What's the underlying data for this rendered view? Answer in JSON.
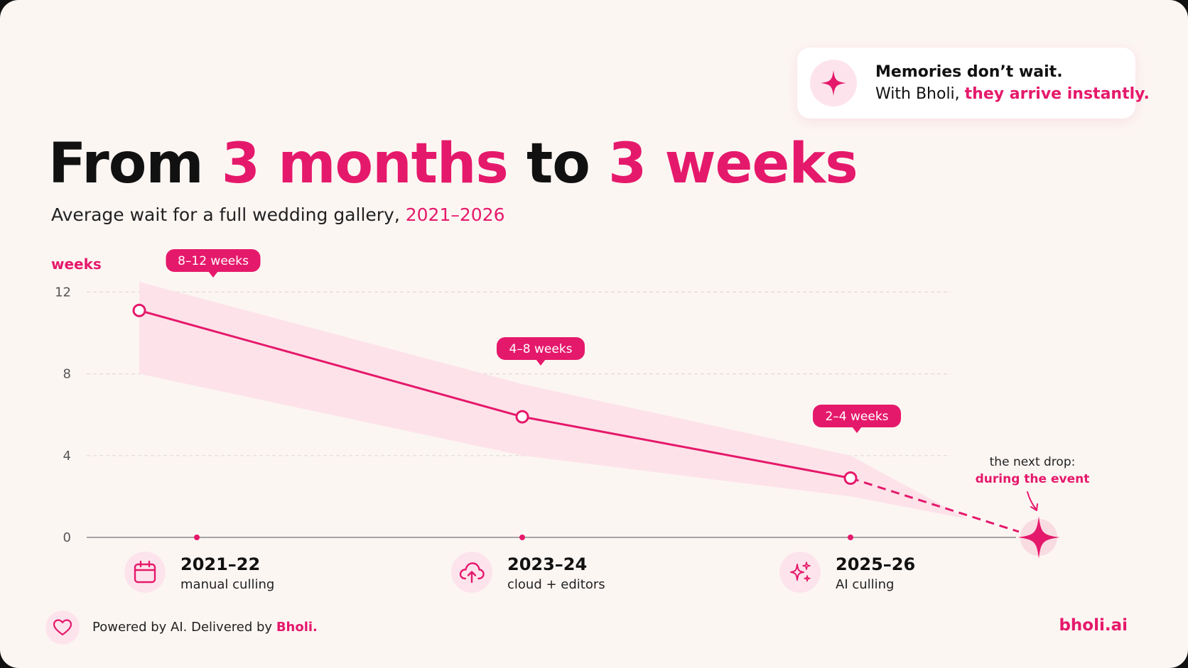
{
  "callout": {
    "line1": "Memories don’t wait.",
    "line2_prefix": "With Bholi, ",
    "line2_highlight": "they arrive instantly."
  },
  "title": {
    "part1": "From ",
    "highlight1": "3 months",
    "part2": " to ",
    "highlight2": "3 weeks"
  },
  "subtitle": {
    "text": "Average wait for a full wedding gallery, ",
    "highlight": "2021–2026"
  },
  "chart_data": {
    "type": "line",
    "ylabel": "weeks",
    "yticks": [
      0,
      4,
      8,
      12
    ],
    "ylim": [
      0,
      12
    ],
    "grid": true,
    "categories": [
      "2021–22",
      "2023–24",
      "2025–26"
    ],
    "series": [
      {
        "values": [
          11.1,
          5.9,
          2.9
        ],
        "range_low": [
          8,
          4,
          2
        ],
        "range_high": [
          12.5,
          7.5,
          4
        ]
      }
    ],
    "range_labels": [
      "8–12 weeks",
      "4–8 weeks",
      "2–4 weeks"
    ],
    "category_details": [
      "manual culling",
      "cloud + editors",
      "AI culling"
    ],
    "projection": {
      "label_line1": "the next drop:",
      "label_line2": "during the event",
      "value": 0
    }
  },
  "category_icons": [
    "calendar-icon",
    "cloud-upload-icon",
    "sparkles-icon"
  ],
  "footer": {
    "text": "Powered by AI. Delivered by ",
    "highlight": "Bholi."
  },
  "brand": "bholi.ai",
  "colors": {
    "accent": "#e5196b",
    "band": "#fde1e8",
    "background": "#fcf6f3",
    "text": "#111111"
  }
}
